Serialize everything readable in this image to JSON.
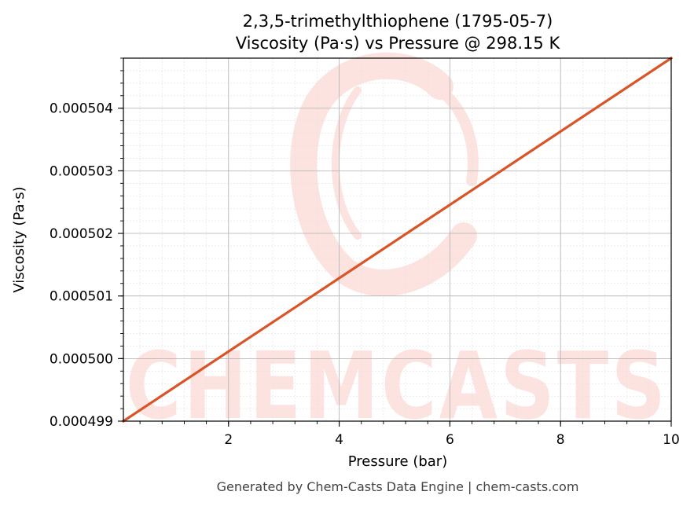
{
  "chart_data": {
    "type": "line",
    "title_lines": [
      "2,3,5-trimethylthiophene (1795-05-7)",
      "Viscosity (Pa·s) vs Pressure @ 298.15 K"
    ],
    "xlabel": "Pressure (bar)",
    "ylabel": "Viscosity (Pa·s)",
    "xlim": [
      0.1,
      10
    ],
    "ylim": [
      0.000499,
      0.0005048
    ],
    "x_ticks": [
      2,
      4,
      6,
      8,
      10
    ],
    "x_tick_labels": [
      "2",
      "4",
      "6",
      "8",
      "10"
    ],
    "y_ticks": [
      0.000499,
      0.0005,
      0.000501,
      0.000502,
      0.000503,
      0.000504
    ],
    "y_tick_labels": [
      "0.000499",
      "0.000500",
      "0.000501",
      "0.000502",
      "0.000503",
      "0.000504"
    ],
    "grid": true,
    "series": [
      {
        "color": "#d95426",
        "x": [
          0.1,
          10
        ],
        "y": [
          0.000499,
          0.0005048
        ]
      }
    ]
  },
  "watermark": {
    "text": "CHEMCASTS",
    "color": "#fde3e0"
  },
  "footer": "Generated by Chem-Casts Data Engine | chem-casts.com"
}
